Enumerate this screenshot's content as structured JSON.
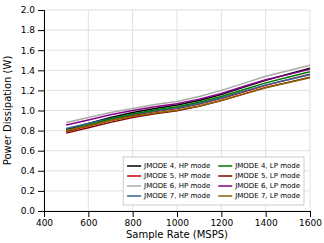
{
  "chart_data": {
    "type": "line",
    "xlabel": "Sample Rate (MSPS)",
    "ylabel": "Power Dissipation (W)",
    "x": [
      500,
      600,
      700,
      800,
      900,
      1000,
      1100,
      1200,
      1300,
      1400,
      1500,
      1600
    ],
    "series": [
      {
        "name": "JMODE 4, HP mode",
        "color": "#000000",
        "values": [
          0.81,
          0.87,
          0.93,
          0.98,
          1.02,
          1.055,
          1.1,
          1.16,
          1.23,
          1.3,
          1.36,
          1.42
        ]
      },
      {
        "name": "JMODE 5, HP mode",
        "color": "#cc0000",
        "values": [
          0.79,
          0.845,
          0.9,
          0.95,
          0.99,
          1.02,
          1.065,
          1.12,
          1.185,
          1.25,
          1.305,
          1.36
        ]
      },
      {
        "name": "JMODE 6, HP mode",
        "color": "#aaaaaa",
        "values": [
          0.88,
          0.93,
          0.98,
          1.02,
          1.06,
          1.09,
          1.14,
          1.2,
          1.27,
          1.34,
          1.395,
          1.45
        ]
      },
      {
        "name": "JMODE 7, HP mode",
        "color": "#336699",
        "values": [
          0.82,
          0.87,
          0.92,
          0.96,
          0.995,
          1.025,
          1.07,
          1.125,
          1.19,
          1.255,
          1.305,
          1.355
        ]
      },
      {
        "name": "JMODE 4, LP mode",
        "color": "#007700",
        "values": [
          0.8,
          0.855,
          0.915,
          0.965,
          1.005,
          1.038,
          1.082,
          1.14,
          1.207,
          1.275,
          1.33,
          1.385
        ]
      },
      {
        "name": "JMODE 5, LP mode",
        "color": "#880000",
        "values": [
          0.775,
          0.828,
          0.882,
          0.93,
          0.968,
          0.998,
          1.042,
          1.098,
          1.163,
          1.228,
          1.28,
          1.33
        ]
      },
      {
        "name": "JMODE 6, LP mode",
        "color": "#880088",
        "values": [
          0.855,
          0.905,
          0.958,
          1.0,
          1.038,
          1.068,
          1.113,
          1.17,
          1.238,
          1.305,
          1.357,
          1.41
        ]
      },
      {
        "name": "JMODE 7, LP mode",
        "color": "#886600",
        "values": [
          0.8,
          0.848,
          0.9,
          0.94,
          0.975,
          1.003,
          1.045,
          1.1,
          1.163,
          1.226,
          1.276,
          1.325
        ]
      }
    ],
    "xlim": [
      400,
      1600
    ],
    "ylim": [
      0,
      2
    ],
    "xticks": [
      400,
      600,
      800,
      1000,
      1200,
      1400,
      1600
    ],
    "yticks": [
      {
        "value": 0,
        "label": "0.0"
      },
      0.2,
      0.4,
      0.6,
      0.8,
      {
        "value": 1.0,
        "label": "1.0"
      },
      1.2,
      1.4,
      1.6,
      1.8,
      {
        "value": 2.0,
        "label": "2.0"
      }
    ],
    "grid": true,
    "legend": "lower right"
  }
}
